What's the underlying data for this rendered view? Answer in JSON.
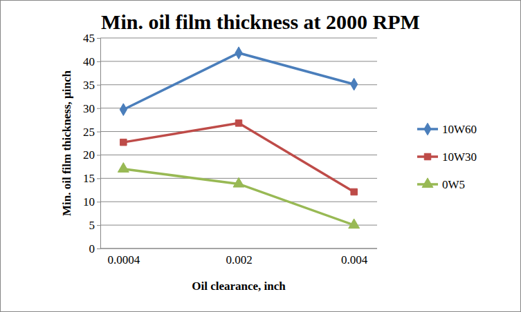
{
  "chart_data": {
    "type": "line",
    "title": "Min. oil film thickness at 2000 RPM",
    "x_label": "Oil clearance, inch",
    "y_label": "Min. oil film thickness, µinch",
    "categories": [
      "0.0004",
      "0.002",
      "0.004"
    ],
    "series": [
      {
        "name": "10W60",
        "color": "#4a7ebb",
        "marker": "diamond",
        "values": [
          29.7,
          41.8,
          35.1
        ]
      },
      {
        "name": "10W30",
        "color": "#be4b48",
        "marker": "square",
        "values": [
          22.7,
          26.8,
          12.1
        ]
      },
      {
        "name": "0W5",
        "color": "#98b954",
        "marker": "triangle",
        "values": [
          17.0,
          13.8,
          5.0
        ]
      }
    ],
    "ylim": [
      0,
      45
    ],
    "yticks": [
      0,
      5,
      10,
      15,
      20,
      25,
      30,
      35,
      40,
      45
    ],
    "grid": true,
    "legend": "right"
  }
}
